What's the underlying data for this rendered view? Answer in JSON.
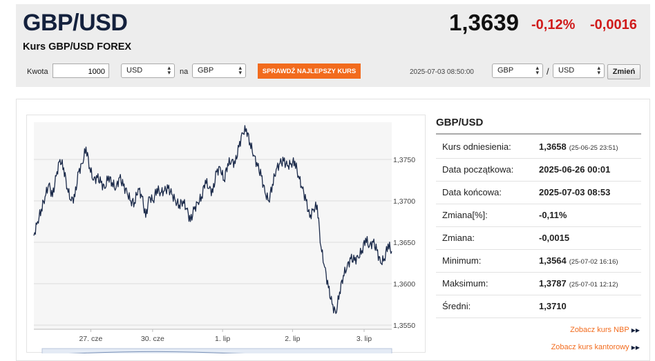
{
  "header": {
    "pair": "GBP/USD",
    "subtitle": "Kurs GBP/USD FOREX",
    "price": "1,3639",
    "change_pct": "-0,12%",
    "change_abs": "-0,0016",
    "down_color": "#d01b1b"
  },
  "calculator": {
    "amount_label": "Kwota",
    "amount_value": "1000",
    "from_currency": "USD",
    "to_label": "na",
    "to_currency": "GBP",
    "best_rate_button": "SPRAWDŹ NAJLEPSZY KURS",
    "timestamp": "2025-07-03 08:50:00",
    "pair_base": "GBP",
    "pair_separator": "/",
    "pair_quote": "USD",
    "change_button": "Zmień"
  },
  "chart_data": {
    "type": "line",
    "x_ticks": [
      "27. cze",
      "30. cze",
      "1. lip",
      "2. lip",
      "3. lip"
    ],
    "y_ticks": [
      "1,3750",
      "1,3700",
      "1,3650",
      "1,3600",
      "1,3550"
    ],
    "ylim": [
      1.3545,
      1.3795
    ],
    "grid": true,
    "series": [
      {
        "color": "#1b2a4a",
        "points": [
          [
            0,
            1.3658
          ],
          [
            1,
            1.3675
          ],
          [
            2,
            1.369
          ],
          [
            3,
            1.3705
          ],
          [
            4,
            1.372
          ],
          [
            5,
            1.3705
          ],
          [
            6,
            1.373
          ],
          [
            7,
            1.375
          ],
          [
            8,
            1.374
          ],
          [
            9,
            1.3715
          ],
          [
            10,
            1.37
          ],
          [
            11,
            1.3705
          ],
          [
            12,
            1.3735
          ],
          [
            13,
            1.3745
          ],
          [
            14,
            1.3765
          ],
          [
            15,
            1.374
          ],
          [
            16,
            1.3725
          ],
          [
            17,
            1.3728
          ],
          [
            18,
            1.3722
          ],
          [
            19,
            1.3715
          ],
          [
            20,
            1.373
          ],
          [
            21,
            1.3722
          ],
          [
            22,
            1.3715
          ],
          [
            23,
            1.3728
          ],
          [
            24,
            1.3718
          ],
          [
            25,
            1.371
          ],
          [
            26,
            1.37
          ],
          [
            27,
            1.3698
          ],
          [
            28,
            1.3715
          ],
          [
            29,
            1.3705
          ],
          [
            30,
            1.368
          ],
          [
            31,
            1.3705
          ],
          [
            32,
            1.37
          ],
          [
            33,
            1.3715
          ],
          [
            34,
            1.371
          ],
          [
            35,
            1.3712
          ],
          [
            36,
            1.3715
          ],
          [
            37,
            1.3708
          ],
          [
            38,
            1.37
          ],
          [
            39,
            1.3695
          ],
          [
            40,
            1.37
          ],
          [
            41,
            1.369
          ],
          [
            42,
            1.3675
          ],
          [
            43,
            1.369
          ],
          [
            44,
            1.3698
          ],
          [
            45,
            1.3705
          ],
          [
            46,
            1.3725
          ],
          [
            47,
            1.3715
          ],
          [
            48,
            1.371
          ],
          [
            49,
            1.3735
          ],
          [
            50,
            1.374
          ],
          [
            51,
            1.3725
          ],
          [
            52,
            1.3745
          ],
          [
            53,
            1.3748
          ],
          [
            54,
            1.3745
          ],
          [
            55,
            1.3765
          ],
          [
            56,
            1.3782
          ],
          [
            57,
            1.3787
          ],
          [
            58,
            1.377
          ],
          [
            59,
            1.3755
          ],
          [
            60,
            1.3742
          ],
          [
            61,
            1.373
          ],
          [
            62,
            1.371
          ],
          [
            63,
            1.37
          ],
          [
            64,
            1.372
          ],
          [
            65,
            1.3738
          ],
          [
            66,
            1.3745
          ],
          [
            67,
            1.3748
          ],
          [
            68,
            1.3742
          ],
          [
            69,
            1.3745
          ],
          [
            70,
            1.3748
          ],
          [
            71,
            1.373
          ],
          [
            72,
            1.3715
          ],
          [
            73,
            1.37
          ],
          [
            74,
            1.368
          ],
          [
            75,
            1.369
          ],
          [
            76,
            1.3695
          ],
          [
            77,
            1.3645
          ],
          [
            78,
            1.362
          ],
          [
            79,
            1.3595
          ],
          [
            80,
            1.3575
          ],
          [
            81,
            1.3564
          ],
          [
            82,
            1.359
          ],
          [
            83,
            1.361
          ],
          [
            84,
            1.362
          ],
          [
            85,
            1.363
          ],
          [
            86,
            1.3628
          ],
          [
            87,
            1.3632
          ],
          [
            88,
            1.364
          ],
          [
            89,
            1.3655
          ],
          [
            90,
            1.3645
          ],
          [
            91,
            1.365
          ],
          [
            92,
            1.364
          ],
          [
            93,
            1.3625
          ],
          [
            94,
            1.363
          ],
          [
            95,
            1.3648
          ],
          [
            96,
            1.3639
          ]
        ]
      }
    ]
  },
  "stats": {
    "title": "GBP/USD",
    "rows": [
      {
        "key": "Kurs odniesienia:",
        "value": "1,3658",
        "note": "(25-06-25 23:51)"
      },
      {
        "key": "Data początkowa:",
        "value": "2025-06-26 00:01",
        "note": ""
      },
      {
        "key": "Data końcowa:",
        "value": "2025-07-03 08:53",
        "note": ""
      },
      {
        "key": "Zmiana[%]:",
        "value": "-0,11%",
        "note": ""
      },
      {
        "key": "Zmiana:",
        "value": "-0,0015",
        "note": ""
      },
      {
        "key": "Minimum:",
        "value": "1,3564",
        "note": "(25-07-02 16:16)"
      },
      {
        "key": "Maksimum:",
        "value": "1,3787",
        "note": "(25-07-01 12:12)"
      },
      {
        "key": "Średni:",
        "value": "1,3710",
        "note": ""
      }
    ]
  },
  "links": {
    "nbp": "Zobacz kurs NBP",
    "exchange": "Zobacz kurs kantorowy",
    "accent": "#f26b1d"
  }
}
